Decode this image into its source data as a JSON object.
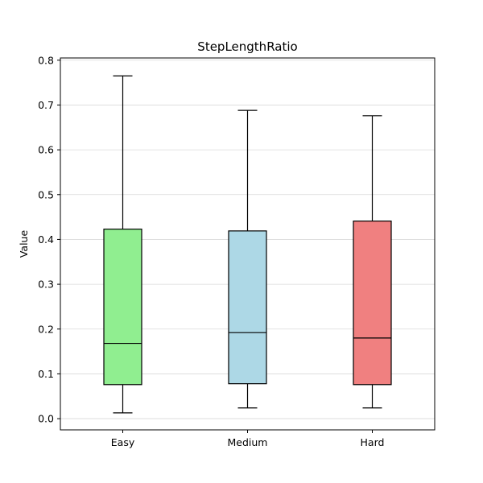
{
  "chart_data": {
    "type": "boxplot",
    "title": "StepLengthRatio",
    "xlabel": "",
    "ylabel": "Value",
    "ylim": [
      -0.025,
      0.805
    ],
    "yticks": [
      0.0,
      0.1,
      0.2,
      0.3,
      0.4,
      0.5,
      0.6,
      0.7,
      0.8
    ],
    "ytick_labels": [
      "0.0",
      "0.1",
      "0.2",
      "0.3",
      "0.4",
      "0.5",
      "0.6",
      "0.7",
      "0.8"
    ],
    "grid": "horizontal",
    "categories": [
      "Easy",
      "Medium",
      "Hard"
    ],
    "boxes": [
      {
        "category": "Easy",
        "whisker_low": 0.013,
        "q1": 0.076,
        "median": 0.168,
        "q3": 0.423,
        "whisker_high": 0.765,
        "color": "#90ee90"
      },
      {
        "category": "Medium",
        "whisker_low": 0.024,
        "q1": 0.078,
        "median": 0.192,
        "q3": 0.419,
        "whisker_high": 0.688,
        "color": "#add8e6"
      },
      {
        "category": "Hard",
        "whisker_low": 0.024,
        "q1": 0.076,
        "median": 0.18,
        "q3": 0.441,
        "whisker_high": 0.676,
        "color": "#f08080"
      }
    ]
  }
}
